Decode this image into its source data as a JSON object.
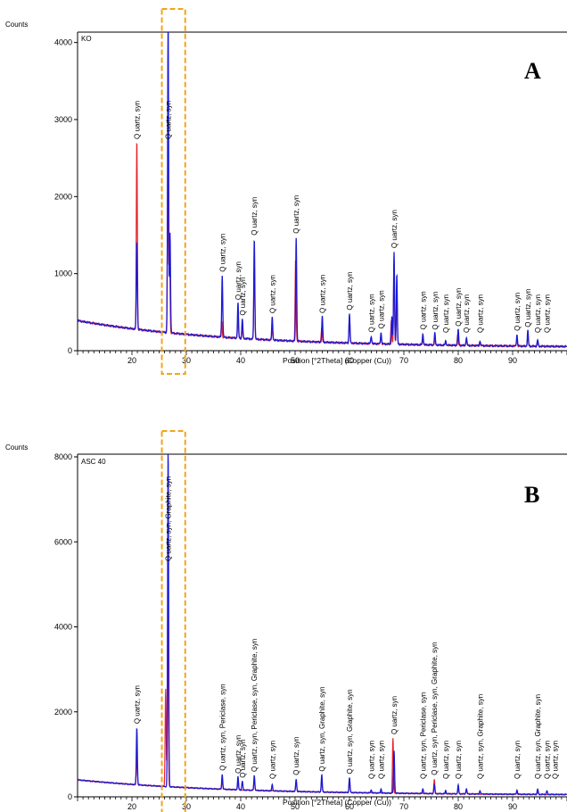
{
  "chart_data": [
    {
      "type": "line",
      "panel": "A",
      "sample": "KO",
      "ylabel": "Counts",
      "xlabel": "Position [°2Theta] (Copper (Cu))",
      "xlim": [
        10,
        100
      ],
      "ylim": [
        0,
        4100
      ],
      "yticks": [
        0,
        1000,
        2000,
        3000,
        4000
      ],
      "xticks": [
        20,
        30,
        40,
        50,
        60,
        70,
        80,
        90
      ],
      "highlight_box_x": [
        25.5,
        29.8
      ],
      "colors": {
        "series_red": "#e8202a",
        "series_blue": "#1a1ad6",
        "highlight": "#f2a51c"
      },
      "baseline": {
        "start": 390,
        "end": 40
      },
      "series": [
        {
          "color": "red",
          "peaks": [
            [
              20.9,
              2450
            ],
            [
              26.6,
              2200
            ],
            [
              26.9,
              1250
            ],
            [
              36.5,
              200
            ],
            [
              39.5,
              280
            ],
            [
              40.3,
              130
            ],
            [
              42.5,
              1000
            ],
            [
              45.8,
              150
            ],
            [
              50.1,
              1050
            ],
            [
              54.9,
              200
            ],
            [
              60.0,
              350
            ],
            [
              64.0,
              70
            ],
            [
              65.8,
              100
            ],
            [
              67.7,
              320
            ],
            [
              68.2,
              1050
            ],
            [
              68.7,
              700
            ],
            [
              73.5,
              60
            ],
            [
              75.7,
              80
            ],
            [
              77.7,
              40
            ],
            [
              79.9,
              150
            ],
            [
              81.5,
              70
            ],
            [
              84.0,
              40
            ],
            [
              90.8,
              80
            ],
            [
              92.8,
              150
            ],
            [
              94.6,
              50
            ]
          ]
        },
        {
          "color": "blue",
          "peaks": [
            [
              20.9,
              1150
            ],
            [
              26.65,
              4100
            ],
            [
              27.0,
              1300
            ],
            [
              36.6,
              800
            ],
            [
              39.5,
              450
            ],
            [
              40.3,
              250
            ],
            [
              42.5,
              1300
            ],
            [
              45.8,
              300
            ],
            [
              50.2,
              1350
            ],
            [
              55.0,
              330
            ],
            [
              60.0,
              380
            ],
            [
              64.0,
              100
            ],
            [
              65.8,
              150
            ],
            [
              67.8,
              350
            ],
            [
              68.2,
              1200
            ],
            [
              68.7,
              900
            ],
            [
              73.5,
              150
            ],
            [
              75.7,
              150
            ],
            [
              77.7,
              60
            ],
            [
              80.0,
              200
            ],
            [
              81.5,
              100
            ],
            [
              84.0,
              60
            ],
            [
              90.8,
              150
            ],
            [
              92.8,
              200
            ],
            [
              94.6,
              80
            ]
          ]
        }
      ],
      "peak_labels": [
        {
          "x": 20.9,
          "text": "Q uartz, syn"
        },
        {
          "x": 26.6,
          "text": "Q uartz, syn"
        },
        {
          "x": 36.6,
          "text": "Q uartz, syn"
        },
        {
          "x": 39.5,
          "text": "Q uartz, syn"
        },
        {
          "x": 40.3,
          "text": "Q uartz, syn"
        },
        {
          "x": 42.5,
          "text": "Q uartz, syn"
        },
        {
          "x": 45.8,
          "text": "Q uartz, syn"
        },
        {
          "x": 50.2,
          "text": "Q uartz, syn"
        },
        {
          "x": 55.0,
          "text": "Q uartz, syn"
        },
        {
          "x": 60.0,
          "text": "Q uartz, syn"
        },
        {
          "x": 64.0,
          "text": "Q uartz, syn"
        },
        {
          "x": 65.8,
          "text": "Q uartz, syn"
        },
        {
          "x": 68.2,
          "text": "Q uartz, syn"
        },
        {
          "x": 73.5,
          "text": "Q uartz, syn"
        },
        {
          "x": 75.7,
          "text": "Q uartz, syn"
        },
        {
          "x": 77.7,
          "text": "Q uartz, syn"
        },
        {
          "x": 80.0,
          "text": "Q uartz, syn"
        },
        {
          "x": 81.5,
          "text": "Q uartz, syn"
        },
        {
          "x": 84.0,
          "text": "Q uartz, syn"
        },
        {
          "x": 90.8,
          "text": "Q uartz, syn"
        },
        {
          "x": 92.8,
          "text": "Q uartz, syn"
        },
        {
          "x": 94.6,
          "text": "Q uartz, syn"
        },
        {
          "x": 96.3,
          "text": "Q uartz, syn"
        }
      ]
    },
    {
      "type": "line",
      "panel": "B",
      "sample": "ASC 40",
      "ylabel": "Counts",
      "xlabel": "Position [°2Theta] (Copper (Cu))",
      "xlim": [
        10,
        100
      ],
      "ylim": [
        0,
        8000
      ],
      "yticks": [
        0,
        2000,
        4000,
        6000,
        8000
      ],
      "xticks": [
        20,
        30,
        40,
        50,
        60,
        70,
        80,
        90
      ],
      "highlight_box_x": [
        25.5,
        29.8
      ],
      "colors": {
        "series_red": "#e8202a",
        "series_blue": "#1a1ad6",
        "highlight": "#f2a51c"
      },
      "baseline": {
        "start": 400,
        "end": 40
      },
      "series": [
        {
          "color": "red",
          "peaks": [
            [
              20.9,
              700
            ],
            [
              26.2,
              2300
            ],
            [
              26.6,
              4200
            ],
            [
              36.6,
              200
            ],
            [
              39.5,
              200
            ],
            [
              42.5,
              250
            ],
            [
              50.2,
              250
            ],
            [
              54.9,
              300
            ],
            [
              60.0,
              300
            ],
            [
              68.0,
              1300
            ],
            [
              75.6,
              350
            ],
            [
              80.0,
              150
            ],
            [
              81.5,
              80
            ],
            [
              90.8,
              50
            ],
            [
              94.6,
              60
            ]
          ]
        },
        {
          "color": "blue",
          "peaks": [
            [
              20.9,
              1350
            ],
            [
              26.65,
              8000
            ],
            [
              36.6,
              350
            ],
            [
              39.5,
              300
            ],
            [
              40.3,
              200
            ],
            [
              42.5,
              350
            ],
            [
              45.8,
              150
            ],
            [
              50.2,
              300
            ],
            [
              54.9,
              400
            ],
            [
              60.0,
              350
            ],
            [
              64.0,
              80
            ],
            [
              65.8,
              100
            ],
            [
              68.2,
              1000
            ],
            [
              73.5,
              120
            ],
            [
              75.6,
              200
            ],
            [
              77.7,
              80
            ],
            [
              80.0,
              200
            ],
            [
              81.5,
              120
            ],
            [
              84.0,
              80
            ],
            [
              90.8,
              100
            ],
            [
              94.6,
              120
            ],
            [
              96.3,
              80
            ]
          ]
        }
      ],
      "peak_labels": [
        {
          "x": 20.9,
          "text": "Q uartz, syn"
        },
        {
          "x": 26.6,
          "text": "Q uartz, syn, Graphite, syn"
        },
        {
          "x": 36.6,
          "text": "Q uartz, syn, Periclase, syn"
        },
        {
          "x": 39.5,
          "text": "Q uartz, syn"
        },
        {
          "x": 40.3,
          "text": "Q uartz, syn"
        },
        {
          "x": 42.5,
          "text": "Q uartz, syn, Periclase, syn, Graphite, syn"
        },
        {
          "x": 45.8,
          "text": "Q uartz, syn"
        },
        {
          "x": 50.2,
          "text": "Q uartz, syn"
        },
        {
          "x": 54.9,
          "text": "Q uartz, syn, Graphite, syn"
        },
        {
          "x": 60.0,
          "text": "Q uartz, syn, Graphite, syn"
        },
        {
          "x": 64.0,
          "text": "Q uartz, syn"
        },
        {
          "x": 65.8,
          "text": "Q uartz, syn"
        },
        {
          "x": 68.2,
          "text": "Q uartz, syn"
        },
        {
          "x": 73.5,
          "text": "Q uartz, syn, Periclase, syn"
        },
        {
          "x": 75.6,
          "text": "Q uartz, syn, Periclase, syn, Graphite, syn"
        },
        {
          "x": 77.7,
          "text": "Q uartz, syn"
        },
        {
          "x": 80.0,
          "text": "Q uartz, syn"
        },
        {
          "x": 84.0,
          "text": "Q uartz, syn, Graphite, syn"
        },
        {
          "x": 90.8,
          "text": "Q uartz, syn"
        },
        {
          "x": 94.6,
          "text": "Q uartz, syn, Graphite, syn"
        },
        {
          "x": 96.3,
          "text": "Q uartz, syn"
        },
        {
          "x": 97.8,
          "text": "Q uartz, syn"
        }
      ]
    }
  ]
}
